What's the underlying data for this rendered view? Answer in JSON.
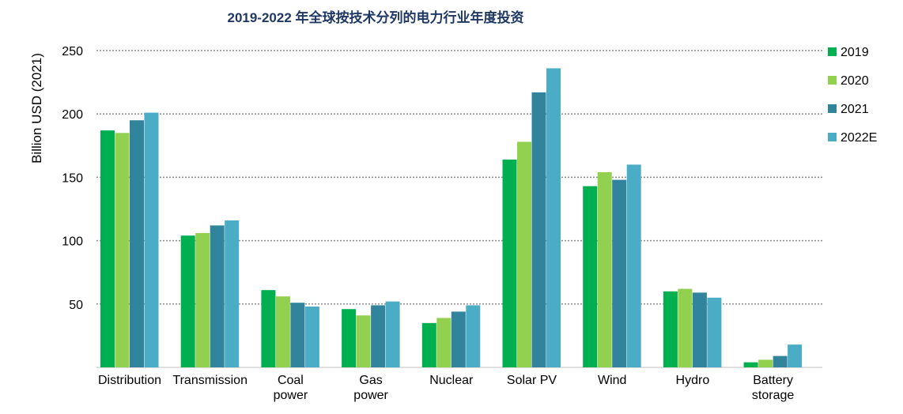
{
  "chart_data": {
    "type": "bar",
    "title": "2019-2022 年全球按技术分列的电力行业年度投资",
    "ylabel": "Billion USD (2021)",
    "xlabel": "",
    "ylim": [
      0,
      250
    ],
    "yticks": [
      50,
      100,
      150,
      200,
      250
    ],
    "grid": true,
    "legend_position": "right",
    "categories": [
      [
        "Distribution"
      ],
      [
        "Transmission"
      ],
      [
        "Coal",
        "power"
      ],
      [
        "Gas",
        "power"
      ],
      [
        "Nuclear"
      ],
      [
        "Solar PV"
      ],
      [
        "Wind"
      ],
      [
        "Hydro"
      ],
      [
        "Battery",
        "storage"
      ]
    ],
    "series": [
      {
        "name": "2019",
        "color": "#00b050",
        "values": [
          187,
          104,
          61,
          46,
          35,
          164,
          143,
          60,
          4
        ]
      },
      {
        "name": "2020",
        "color": "#92d050",
        "values": [
          185,
          106,
          56,
          41,
          39,
          178,
          154,
          62,
          6
        ]
      },
      {
        "name": "2021",
        "color": "#31849b",
        "values": [
          195,
          112,
          51,
          49,
          44,
          217,
          148,
          59,
          9
        ]
      },
      {
        "name": "2022E",
        "color": "#4bacc6",
        "values": [
          201,
          116,
          48,
          52,
          49,
          236,
          160,
          55,
          18
        ]
      }
    ]
  }
}
